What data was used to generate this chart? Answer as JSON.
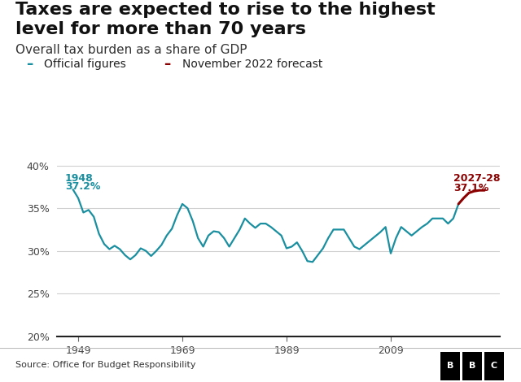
{
  "title_line1": "Taxes are expected to rise to the highest",
  "title_line2": "level for more than 70 years",
  "subtitle": "Overall tax burden as a share of GDP",
  "legend_official": "Official figures",
  "legend_forecast": "November 2022 forecast",
  "official_color": "#1a8fa0",
  "forecast_color": "#8b0000",
  "source": "Source: Office for Budget Responsibility",
  "ylim": [
    20,
    41.5
  ],
  "yticks": [
    20,
    25,
    30,
    35,
    40
  ],
  "xlabel_ticks": [
    1949,
    1969,
    1989,
    2009
  ],
  "official_years": [
    1948,
    1949,
    1950,
    1951,
    1952,
    1953,
    1954,
    1955,
    1956,
    1957,
    1958,
    1959,
    1960,
    1961,
    1962,
    1963,
    1964,
    1965,
    1966,
    1967,
    1968,
    1969,
    1970,
    1971,
    1972,
    1973,
    1974,
    1975,
    1976,
    1977,
    1978,
    1979,
    1980,
    1981,
    1982,
    1983,
    1984,
    1985,
    1986,
    1987,
    1988,
    1989,
    1990,
    1991,
    1992,
    1993,
    1994,
    1995,
    1996,
    1997,
    1998,
    1999,
    2000,
    2001,
    2002,
    2003,
    2004,
    2005,
    2006,
    2007,
    2008,
    2009,
    2010,
    2011,
    2012,
    2013,
    2014,
    2015,
    2016,
    2017,
    2018,
    2019,
    2020,
    2021,
    2022
  ],
  "official_values": [
    37.2,
    36.2,
    34.5,
    34.8,
    34.0,
    32.0,
    30.8,
    30.2,
    30.6,
    30.2,
    29.5,
    29.0,
    29.5,
    30.3,
    30.0,
    29.4,
    30.0,
    30.7,
    31.8,
    32.6,
    34.2,
    35.5,
    35.0,
    33.5,
    31.5,
    30.5,
    31.8,
    32.3,
    32.2,
    31.5,
    30.5,
    31.5,
    32.5,
    33.8,
    33.2,
    32.7,
    33.2,
    33.2,
    32.8,
    32.3,
    31.8,
    30.3,
    30.5,
    31.0,
    30.0,
    28.8,
    28.7,
    29.5,
    30.3,
    31.5,
    32.5,
    32.5,
    32.5,
    31.5,
    30.5,
    30.2,
    30.7,
    31.2,
    31.7,
    32.2,
    32.8,
    29.7,
    31.5,
    32.8,
    32.3,
    31.8,
    32.3,
    32.8,
    33.2,
    33.8,
    33.8,
    33.8,
    33.2,
    33.8,
    35.5
  ],
  "forecast_years": [
    2022,
    2023,
    2024,
    2025,
    2026,
    2027
  ],
  "forecast_values": [
    35.5,
    36.2,
    36.8,
    37.0,
    37.1,
    37.1
  ],
  "background_color": "#ffffff",
  "grid_color": "#d0d0d0",
  "footer_color": "#f2f2f2",
  "title_fontsize": 16,
  "subtitle_fontsize": 11,
  "legend_fontsize": 10,
  "tick_fontsize": 9,
  "annotation_fontsize": 9,
  "source_fontsize": 8
}
